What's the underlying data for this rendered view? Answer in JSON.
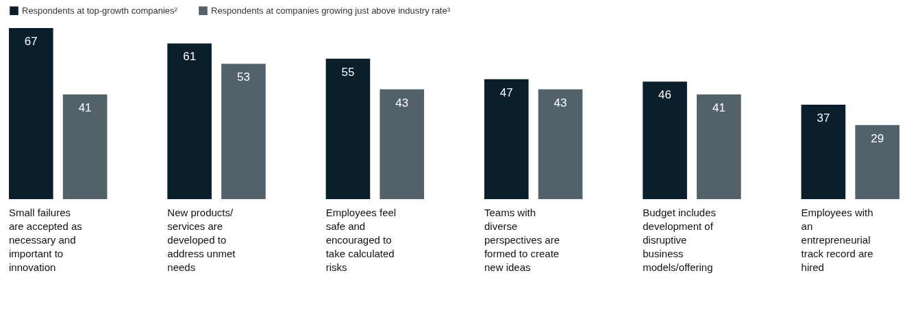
{
  "chart_data": {
    "type": "bar",
    "categories": [
      "Small failures are accepted as necessary and important to innovation",
      "New products/ services are developed to address unmet needs",
      "Employees feel safe and encouraged to take calculated risks",
      "Teams with diverse perspectives are formed to create new ideas",
      "Budget includes development of disruptive business models/offering",
      "Employees with an entrepreneurial track record are hired"
    ],
    "series": [
      {
        "name": "Respondents at top-growth companies²",
        "color": "#0b1e2c",
        "values": [
          67,
          61,
          55,
          47,
          46,
          37
        ]
      },
      {
        "name": "Respondents at companies growing just above industry rate³",
        "color": "#53616b",
        "values": [
          41,
          53,
          43,
          43,
          41,
          29
        ]
      }
    ],
    "data_labels": true,
    "legend": "top left"
  }
}
